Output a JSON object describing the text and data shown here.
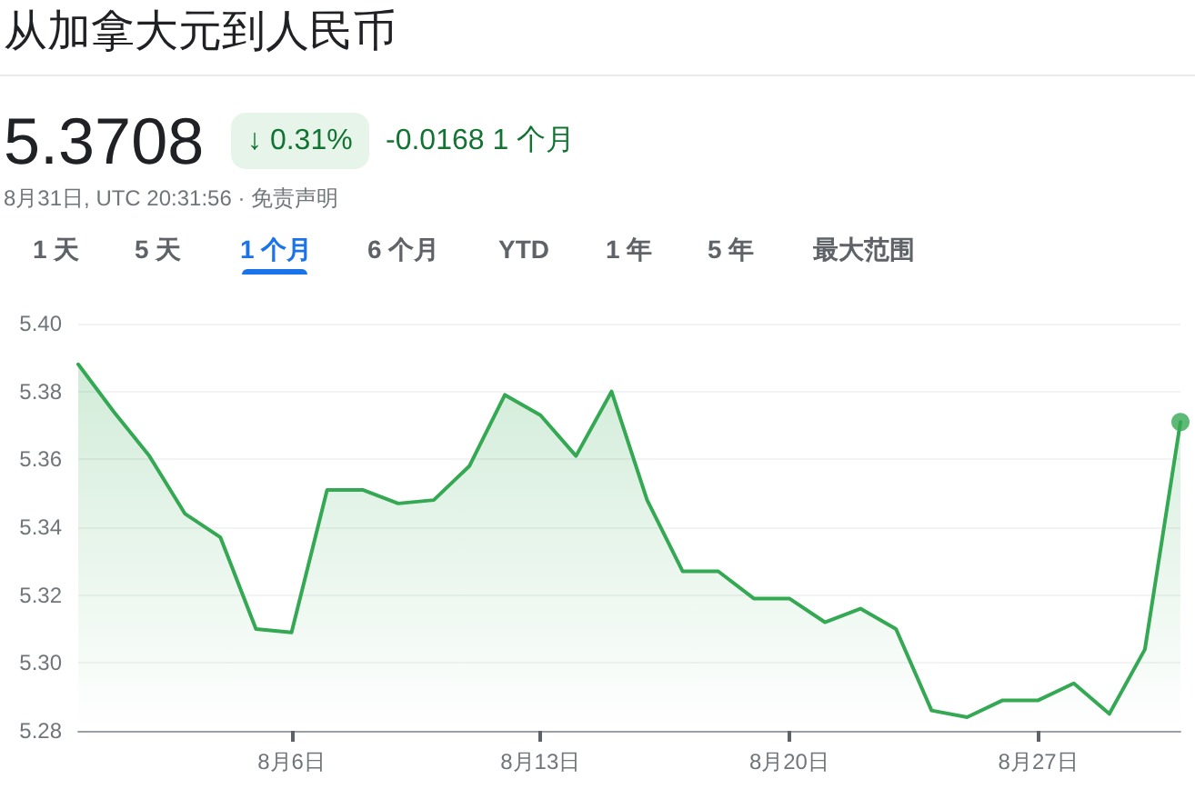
{
  "chart_data": {
    "type": "area",
    "title": "从加拿大元到人民币",
    "subtitle": "5.3708",
    "annotations": [
      "↓ 0.31%",
      "-0.0168 1 个月",
      "8月31日, UTC 20:31:56 · 免责声明",
      "1 天",
      "5 天",
      "1 个月",
      "6 个月",
      "YTD",
      "1 年",
      "5 年",
      "最大范围"
    ],
    "x": [
      "--07-31",
      "--08-01",
      "--08-02",
      "--08-03",
      "--08-04",
      "--08-05",
      "--08-06",
      "--08-07",
      "--08-08",
      "--08-09",
      "--08-10",
      "--08-11",
      "--08-12",
      "--08-13",
      "--08-14",
      "--08-15",
      "--08-16",
      "--08-17",
      "--08-18",
      "--08-19",
      "--08-20",
      "--08-21",
      "--08-22",
      "--08-23",
      "--08-24",
      "--08-25",
      "--08-26",
      "--08-27",
      "--08-28",
      "--08-29",
      "--08-30",
      "--08-31"
    ],
    "series": [
      {
        "color": "#34a853",
        "values": [
          5.388,
          5.374,
          5.361,
          5.344,
          5.337,
          5.31,
          5.309,
          5.351,
          5.351,
          5.347,
          5.348,
          5.358,
          5.379,
          5.373,
          5.361,
          5.38,
          5.348,
          5.327,
          5.327,
          5.319,
          5.319,
          5.312,
          5.316,
          5.31,
          5.286,
          5.284,
          5.289,
          5.289,
          5.294,
          5.285,
          5.304,
          5.371
        ]
      },
      {
        "type": "scatter",
        "color": "#34a853",
        "x": [
          "--08-31"
        ],
        "values": [
          5.371
        ]
      }
    ],
    "xlim": [
      "--07-31",
      "--08-31"
    ],
    "xticks": [
      {
        "value": "--08-06",
        "label": "8月6日"
      },
      {
        "value": "--08-13",
        "label": "8月13日"
      },
      {
        "value": "--08-20",
        "label": "8月20日"
      },
      {
        "value": "--08-27",
        "label": "8月27日"
      }
    ],
    "ylim": [
      5.28,
      5.4
    ],
    "yticks": [
      5.28,
      {
        "value": 5.3,
        "label": "5.30"
      },
      5.32,
      5.34,
      5.36,
      5.38,
      {
        "value": 5.4,
        "label": "5.40"
      }
    ],
    "grid": "y"
  }
}
